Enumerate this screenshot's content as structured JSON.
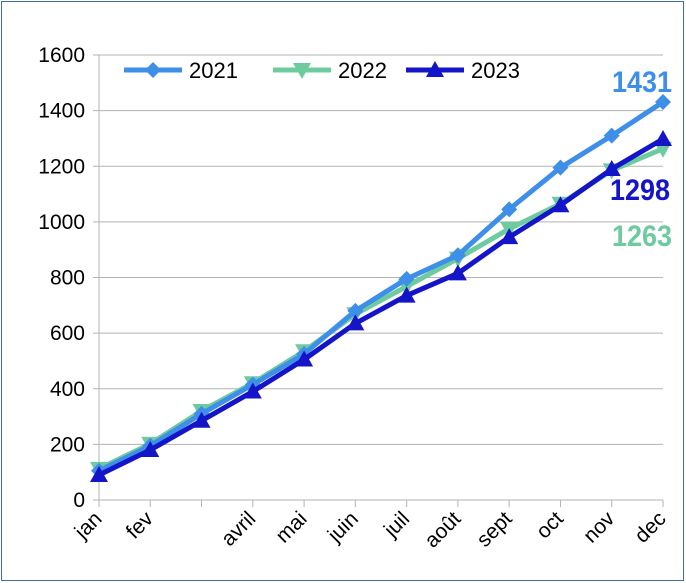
{
  "chart_data": {
    "type": "line",
    "title": "",
    "xlabel": "",
    "ylabel": "",
    "categories": [
      "jan",
      "fev",
      "",
      "avril",
      "mai",
      "juin",
      "juil",
      "août",
      "sept",
      "oct",
      "nov",
      "dec"
    ],
    "ylim": [
      0,
      1600
    ],
    "yticks": [
      "0",
      "200",
      "400",
      "600",
      "800",
      "1000",
      "1200",
      "1400",
      "1600"
    ],
    "grid": true,
    "legend_position": "top",
    "series": [
      {
        "name": "2021",
        "color": "#3d8fe8",
        "marker": "diamond",
        "values": [
          105,
          195,
          310,
          415,
          525,
          680,
          795,
          880,
          1045,
          1195,
          1310,
          1431
        ]
      },
      {
        "name": "2022",
        "color": "#6ecba0",
        "marker": "triangle-down",
        "values": [
          112,
          202,
          320,
          420,
          535,
          668,
          768,
          868,
          975,
          1065,
          1185,
          1263
        ]
      },
      {
        "name": "2023",
        "color": "#1414c8",
        "marker": "triangle-up",
        "values": [
          90,
          180,
          285,
          390,
          505,
          635,
          735,
          815,
          945,
          1060,
          1190,
          1298
        ]
      }
    ],
    "end_labels": [
      {
        "series": "2021",
        "text": "1431",
        "color": "#3d8fe8"
      },
      {
        "series": "2023",
        "text": "1298",
        "color": "#1414c8"
      },
      {
        "series": "2022",
        "text": "1263",
        "color": "#6ecba0"
      }
    ]
  }
}
